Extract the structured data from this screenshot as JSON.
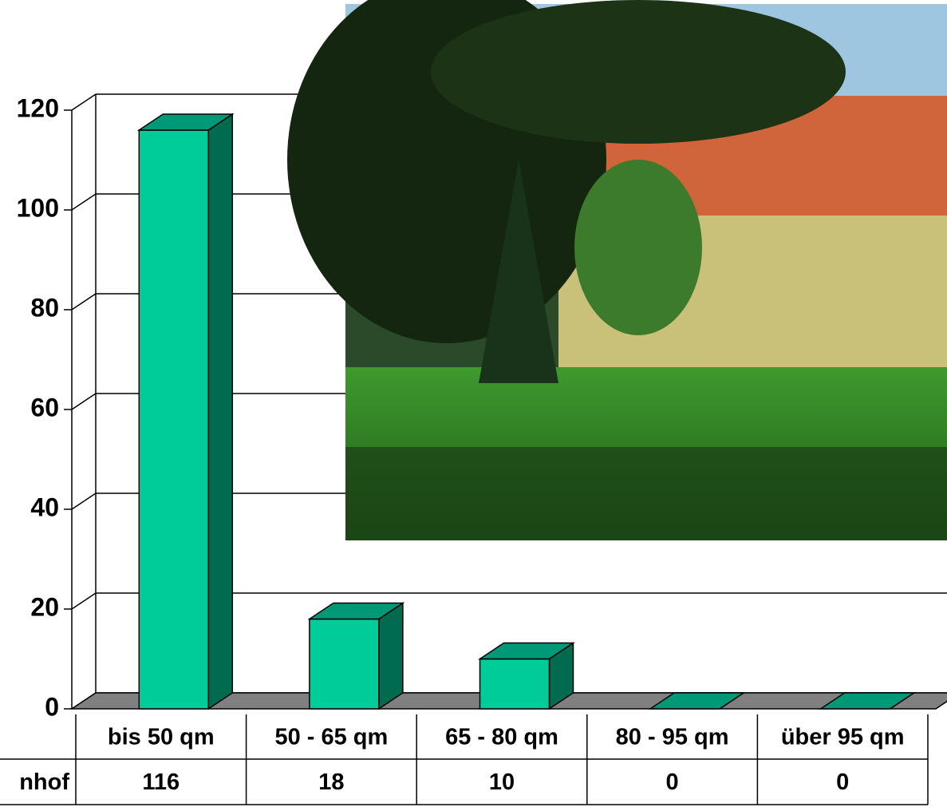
{
  "chart_data": {
    "type": "bar3d",
    "categories": [
      "bis 50 qm",
      "50 - 65 qm",
      "65 - 80 qm",
      "80 - 95 qm",
      "über 95 qm"
    ],
    "series": [
      {
        "name": "nhof",
        "color": "#00cc99",
        "values": [
          116,
          18,
          10,
          0,
          0
        ]
      }
    ],
    "ylim": [
      0,
      120
    ],
    "yticks": [
      0,
      20,
      40,
      60,
      80,
      100,
      120
    ],
    "grid": true,
    "data_table": true
  }
}
